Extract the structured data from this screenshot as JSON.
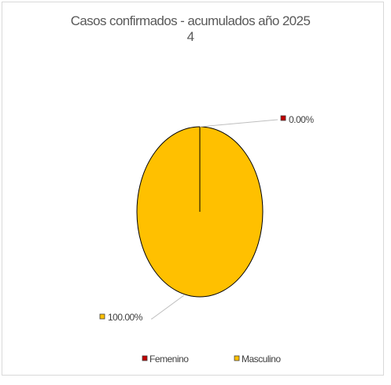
{
  "chart_data": {
    "type": "pie",
    "title": "Casos confirmados - acumulados año 2025",
    "subtitle": "4",
    "categories": [
      "Femenino",
      "Masculino"
    ],
    "values": [
      0,
      100
    ],
    "data_labels": [
      "0.00%",
      "100.00%"
    ],
    "colors": [
      "#c00000",
      "#ffc000"
    ],
    "legend_position": "bottom"
  }
}
